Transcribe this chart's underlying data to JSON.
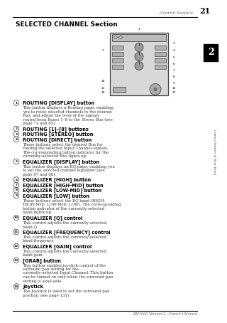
{
  "page_title": "Control Surface",
  "page_number": "21",
  "section_title": "SELECTED CHANNEL Section",
  "chapter_number": "2",
  "chapter_label": "Control Surface & Rear Panel",
  "footer_text": "DM1000 Version 2—Owner’s Manual",
  "background_color": "#ffffff",
  "header_line_color": "#000000",
  "footer_line_color": "#000000",
  "items": [
    {
      "num": 1,
      "bold": "ROUTING [DISPLAY] button",
      "text": "This button displays a Routing page, enabling you to route selected channels to the desired Bus, and adjust the level of the signals routed from Buses 1–8 to the Stereo Bus (see page 71 and 85)."
    },
    {
      "num": 2,
      "bold": "ROUTING [1]–[8] buttons",
      "text": ""
    },
    {
      "num": 3,
      "bold": "ROUTING [STEREO] button",
      "text": ""
    },
    {
      "num": 4,
      "bold": "ROUTING [DIRECT] button",
      "text": "These buttons select the desired Bus for routing the selected Input Channel signals. The cor-responding button indicator for the currently-selected Bus lights up."
    },
    {
      "num": 5,
      "bold": "EQUALIZER [DISPLAY] button",
      "text": "This button displays an EQ page, enabling you to set the selected channel equalizer (see page 67 and 68)."
    },
    {
      "num": 6,
      "bold": "EQUALIZER [HIGH] button",
      "text": ""
    },
    {
      "num": 7,
      "bold": "EQUALIZER [HIGH-MID] button",
      "text": ""
    },
    {
      "num": 8,
      "bold": "EQUALIZER [LOW-MID] button",
      "text": ""
    },
    {
      "num": 9,
      "bold": "EQUALIZER [LOW] button",
      "text": "These buttons select the EQ band (HIGH, HIGH-MID, LOW-MID, LOW). The corre-sponding button indicator of the currently-selected band lights up."
    },
    {
      "num": 10,
      "bold": "EQUALIZER [Q] control",
      "text": "This control adjusts the currently-selected band Q."
    },
    {
      "num": 11,
      "bold": "EQUALIZER [FREQUENCY] control",
      "text": "This control adjusts the currently-selected band frequency."
    },
    {
      "num": 12,
      "bold": "EQUALIZER [GAIN] control",
      "text": "This control adjusts the currently-selected band gain."
    },
    {
      "num": 13,
      "bold": "[GRAB] button",
      "text": "This button enables joystick control of the surround pan setting for the currently-selected Input Channel. This button can be turned on only when the surround pan setting is avail-able."
    },
    {
      "num": 14,
      "bold": "Joystick",
      "text": "The Joystick is used to set the surround pan position (see page 131)."
    }
  ]
}
